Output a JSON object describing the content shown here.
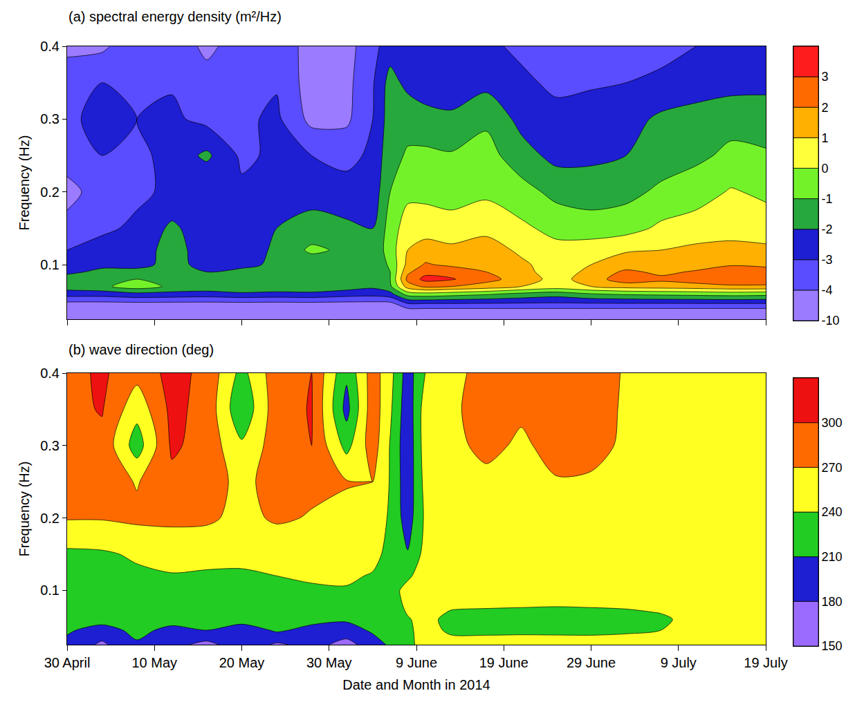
{
  "chart_data": [
    {
      "type": "contour",
      "title": "(a) spectral energy density (m²/Hz)",
      "y_label": "Frequency (Hz)",
      "tick_labels": "y",
      "x": [
        "2014-04-30",
        "2014-05-04",
        "2014-05-08",
        "2014-05-12",
        "2014-05-16",
        "2014-05-20",
        "2014-05-24",
        "2014-05-28",
        "2014-06-01",
        "2014-06-04",
        "2014-06-06",
        "2014-06-08",
        "2014-06-10",
        "2014-06-13",
        "2014-06-17",
        "2014-06-21",
        "2014-06-25",
        "2014-06-29",
        "2014-07-03",
        "2014-07-07",
        "2014-07-11",
        "2014-07-15",
        "2014-07-19"
      ],
      "y": [
        0.025,
        0.045,
        0.06,
        0.07,
        0.08,
        0.09,
        0.1,
        0.12,
        0.15,
        0.2,
        0.25,
        0.3,
        0.35,
        0.4
      ],
      "z": [
        [
          -6,
          -6,
          -6,
          -6,
          -6,
          -6,
          -6,
          -6,
          -6,
          -6,
          -6,
          -6,
          -6,
          -6,
          -6,
          -6,
          -6,
          -6,
          -6,
          -6,
          -6,
          -6,
          -6
        ],
        [
          -4.5,
          -4.5,
          -4.5,
          -4.5,
          -4.5,
          -4.5,
          -4.5,
          -4.5,
          -4.5,
          -4.5,
          -4.5,
          -3.3,
          -3.3,
          -3.3,
          -3.3,
          -3.3,
          -3.3,
          -3.3,
          -3.3,
          -3.3,
          -3.3,
          -3.3,
          -3.3
        ],
        [
          -2.5,
          -2.5,
          -2.2,
          -2.3,
          -2.4,
          -2.2,
          -2.3,
          -2.2,
          -2.5,
          -2.6,
          -2.3,
          -0.5,
          -0.3,
          -0.5,
          -0.8,
          -1.2,
          -1.5,
          -1.0,
          -0.8,
          -0.7,
          -0.6,
          -0.5,
          -0.6
        ],
        [
          -1.5,
          -1.2,
          -0.5,
          -1.2,
          -1.3,
          -1.0,
          -1.2,
          -1.3,
          -1.5,
          -1.8,
          -1.2,
          1.5,
          2.2,
          2.0,
          1.6,
          1.0,
          0.6,
          1.0,
          1.4,
          1.5,
          1.6,
          1.8,
          1.8
        ],
        [
          -1.6,
          -1.5,
          -1.0,
          -1.4,
          -1.5,
          -1.0,
          -1.2,
          -1.4,
          -1.5,
          -1.7,
          -1.0,
          2.3,
          3.3,
          3.1,
          2.3,
          1.6,
          0.6,
          1.5,
          2.6,
          2.2,
          2.5,
          2.8,
          2.7
        ],
        [
          -2.2,
          -1.8,
          -1.7,
          -1.8,
          -2.0,
          -1.6,
          -1.6,
          -1.7,
          -1.8,
          -1.9,
          -1.0,
          1.8,
          2.7,
          2.6,
          2.0,
          1.4,
          0.4,
          1.3,
          2.2,
          1.8,
          2.1,
          2.6,
          2.4
        ],
        [
          -2.6,
          -2.2,
          -2.3,
          -1.7,
          -2.3,
          -2.4,
          -1.7,
          -1.6,
          -1.7,
          -1.9,
          -0.8,
          1.3,
          2.1,
          1.8,
          1.6,
          1.2,
          0.5,
          1.0,
          1.5,
          1.3,
          1.6,
          1.9,
          1.8
        ],
        [
          -3.0,
          -2.6,
          -2.5,
          -1.6,
          -2.5,
          -2.6,
          -1.8,
          -0.8,
          -1.2,
          -1.8,
          -0.5,
          1.0,
          1.4,
          1.2,
          1.5,
          0.8,
          0.3,
          0.5,
          0.9,
          1.0,
          1.2,
          1.3,
          1.2
        ],
        [
          -3.5,
          -3.2,
          -2.8,
          -1.8,
          -2.6,
          -2.7,
          -2.0,
          -1.6,
          -1.8,
          -2.0,
          -0.6,
          0.6,
          0.6,
          0.5,
          0.7,
          0.2,
          -0.3,
          -0.5,
          -0.4,
          0.2,
          0.5,
          0.6,
          0.5
        ],
        [
          -4.5,
          -3.3,
          -3.2,
          -2.8,
          -3.0,
          -2.8,
          -2.7,
          -2.4,
          -2.6,
          -2.6,
          -1.0,
          -0.3,
          -0.3,
          -0.5,
          -0.2,
          -0.6,
          -1.3,
          -1.5,
          -1.3,
          -0.8,
          -0.5,
          0.1,
          -0.2
        ],
        [
          -3.3,
          -3.0,
          -3.3,
          -2.6,
          -1.8,
          -3.2,
          -2.8,
          -3.0,
          -3.3,
          -2.8,
          -1.3,
          -0.9,
          -0.8,
          -0.9,
          -0.6,
          -1.6,
          -2.3,
          -2.2,
          -2.0,
          -1.5,
          -1.2,
          -0.8,
          -0.9
        ],
        [
          -3.2,
          -2.7,
          -3.0,
          -2.8,
          -3.3,
          -3.2,
          -2.8,
          -4.3,
          -4.2,
          -3.0,
          -1.5,
          -1.3,
          -1.6,
          -1.8,
          -1.2,
          -2.3,
          -2.7,
          -2.6,
          -2.4,
          -1.8,
          -1.6,
          -1.3,
          -1.4
        ],
        [
          -3.3,
          -3.0,
          -3.2,
          -3.1,
          -3.5,
          -3.3,
          -3.1,
          -4.5,
          -4.3,
          -3.1,
          -1.6,
          -2.3,
          -2.6,
          -2.6,
          -2.3,
          -2.8,
          -3.2,
          -3.1,
          -3.0,
          -2.8,
          -2.5,
          -2.4,
          -2.3
        ],
        [
          -4.3,
          -4.2,
          -3.3,
          -3.2,
          -4.3,
          -3.4,
          -3.2,
          -4.5,
          -4.4,
          -3.3,
          -2.5,
          -2.8,
          -3.0,
          -2.9,
          -2.8,
          -3.2,
          -3.6,
          -3.7,
          -3.6,
          -3.3,
          -3.0,
          -2.9,
          -3.0
        ]
      ],
      "xlim": [
        "2014-04-30",
        "2014-07-19"
      ],
      "ylim": [
        0.025,
        0.4
      ],
      "xticks": [
        {
          "value": "2014-04-30",
          "label": "30 April"
        },
        {
          "value": "2014-05-10",
          "label": "10 May"
        },
        {
          "value": "2014-05-20",
          "label": "20 May"
        },
        {
          "value": "2014-05-30",
          "label": "30 May"
        },
        {
          "value": "2014-06-09",
          "label": "9 June"
        },
        {
          "value": "2014-06-19",
          "label": "19 June"
        },
        {
          "value": "2014-06-29",
          "label": "29 June"
        },
        {
          "value": "2014-07-09",
          "label": "9 July"
        },
        {
          "value": "2014-07-19",
          "label": "19 July"
        }
      ],
      "yticks": [
        0.1,
        0.2,
        0.3,
        0.4
      ],
      "colorbar": {
        "levels": [
          -10,
          -4,
          -3,
          -2,
          -1,
          0,
          1,
          2,
          3
        ],
        "colors": [
          "#9b7bff",
          "#5a4cff",
          "#1e1ed2",
          "#27a83c",
          "#73f22a",
          "#ffff3a",
          "#ffb000",
          "#ff6a00",
          "#ff1c1c"
        ]
      }
    },
    {
      "type": "contour",
      "title": "(b) wave direction (deg)",
      "x_label": "Date and Month in 2014",
      "y_label": "Frequency (Hz)",
      "x": [
        "2014-04-30",
        "2014-05-04",
        "2014-05-08",
        "2014-05-12",
        "2014-05-16",
        "2014-05-20",
        "2014-05-24",
        "2014-05-28",
        "2014-06-01",
        "2014-06-04",
        "2014-06-06",
        "2014-06-08",
        "2014-06-10",
        "2014-06-13",
        "2014-06-17",
        "2014-06-21",
        "2014-06-25",
        "2014-06-29",
        "2014-07-03",
        "2014-07-07",
        "2014-07-11",
        "2014-07-15",
        "2014-07-19"
      ],
      "y": [
        0.025,
        0.045,
        0.06,
        0.07,
        0.08,
        0.09,
        0.1,
        0.12,
        0.15,
        0.2,
        0.25,
        0.3,
        0.35,
        0.4
      ],
      "z": [
        [
          200,
          175,
          205,
          190,
          170,
          200,
          175,
          190,
          170,
          195,
          215,
          230,
          255,
          250,
          255,
          255,
          250,
          255,
          255,
          250,
          255,
          250,
          255
        ],
        [
          215,
          195,
          220,
          200,
          210,
          190,
          215,
          200,
          195,
          215,
          222,
          235,
          250,
          235,
          232,
          233,
          235,
          232,
          235,
          240,
          250,
          252,
          250
        ],
        [
          222,
          225,
          218,
          224,
          220,
          226,
          222,
          220,
          215,
          222,
          225,
          238,
          248,
          232,
          230,
          230,
          228,
          230,
          232,
          236,
          248,
          250,
          250
        ],
        [
          226,
          228,
          225,
          227,
          226,
          228,
          226,
          225,
          224,
          225,
          226,
          242,
          250,
          238,
          236,
          235,
          234,
          235,
          237,
          241,
          250,
          252,
          252
        ],
        [
          228,
          228,
          228,
          228,
          228,
          228,
          228,
          228,
          228,
          228,
          228,
          245,
          252,
          245,
          244,
          243,
          242,
          243,
          244,
          246,
          252,
          253,
          253
        ],
        [
          228,
          228,
          228,
          228,
          228,
          228,
          228,
          230,
          230,
          228,
          228,
          248,
          255,
          255,
          255,
          255,
          255,
          255,
          255,
          255,
          255,
          255,
          255
        ],
        [
          228,
          228,
          228,
          230,
          232,
          230,
          232,
          236,
          238,
          232,
          228,
          250,
          255,
          255,
          255,
          255,
          255,
          255,
          255,
          255,
          255,
          255,
          255
        ],
        [
          230,
          230,
          235,
          238,
          236,
          236,
          240,
          244,
          244,
          238,
          230,
          235,
          255,
          255,
          255,
          255,
          255,
          255,
          255,
          255,
          255,
          255,
          255
        ],
        [
          234,
          236,
          244,
          252,
          250,
          248,
          250,
          255,
          255,
          248,
          232,
          212,
          250,
          255,
          255,
          255,
          255,
          255,
          255,
          255,
          255,
          255,
          255
        ],
        [
          272,
          272,
          276,
          276,
          275,
          262,
          274,
          268,
          262,
          262,
          235,
          195,
          245,
          255,
          255,
          255,
          255,
          255,
          255,
          255,
          255,
          255,
          255
        ],
        [
          285,
          285,
          268,
          292,
          283,
          262,
          282,
          276,
          272,
          270,
          238,
          190,
          250,
          260,
          262,
          260,
          268,
          264,
          258,
          255,
          255,
          250,
          255
        ],
        [
          288,
          292,
          225,
          305,
          288,
          245,
          285,
          300,
          230,
          285,
          238,
          188,
          255,
          262,
          278,
          265,
          280,
          285,
          262,
          258,
          262,
          255,
          258
        ],
        [
          292,
          302,
          250,
          308,
          290,
          215,
          288,
          302,
          200,
          288,
          245,
          190,
          255,
          265,
          282,
          275,
          285,
          286,
          265,
          260,
          270,
          258,
          262
        ],
        [
          290,
          305,
          280,
          310,
          292,
          230,
          288,
          300,
          215,
          285,
          250,
          195,
          240,
          262,
          280,
          278,
          285,
          280,
          268,
          262,
          262,
          250,
          265
        ]
      ],
      "xlim": [
        "2014-04-30",
        "2014-07-19"
      ],
      "ylim": [
        0.025,
        0.4
      ],
      "xticks": [
        {
          "value": "2014-04-30",
          "label": "30 April"
        },
        {
          "value": "2014-05-10",
          "label": "10 May"
        },
        {
          "value": "2014-05-20",
          "label": "20 May"
        },
        {
          "value": "2014-05-30",
          "label": "30 May"
        },
        {
          "value": "2014-06-09",
          "label": "9 June"
        },
        {
          "value": "2014-06-19",
          "label": "19 June"
        },
        {
          "value": "2014-06-29",
          "label": "29 June"
        },
        {
          "value": "2014-07-09",
          "label": "9 July"
        },
        {
          "value": "2014-07-19",
          "label": "19 July"
        }
      ],
      "yticks": [
        0.1,
        0.2,
        0.3,
        0.4
      ],
      "colorbar": {
        "levels": [
          150,
          180,
          210,
          240,
          270,
          300
        ],
        "colors": [
          "#9b6bff",
          "#1e1ed2",
          "#22cc22",
          "#ffff22",
          "#ff6a00",
          "#ee1111"
        ]
      }
    }
  ]
}
